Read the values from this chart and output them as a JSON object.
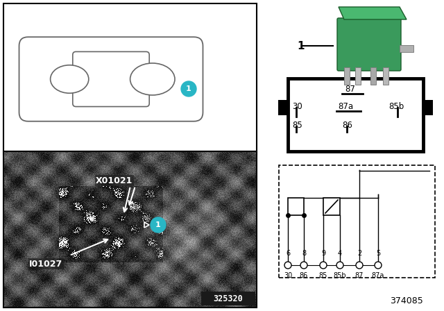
{
  "white": "#ffffff",
  "black": "#000000",
  "teal": "#29b6c5",
  "green_relay": "#3a9a5c",
  "car_line_color": "#666666",
  "photo_bg": "#303030",
  "part_number_photo": "325320",
  "part_number_diagram": "374085",
  "label1": "X01021",
  "label2": "I01027",
  "relay_img_label": "1",
  "pin_top": "87",
  "pin_mid": [
    "30",
    "87a",
    "85b"
  ],
  "pin_bot": [
    "85",
    "86"
  ],
  "schematic_pins_num": [
    "6",
    "8",
    "9",
    "4",
    "2",
    "5"
  ],
  "schematic_pins_name": [
    "30",
    "86",
    "85",
    "85b",
    "87",
    "87a"
  ]
}
